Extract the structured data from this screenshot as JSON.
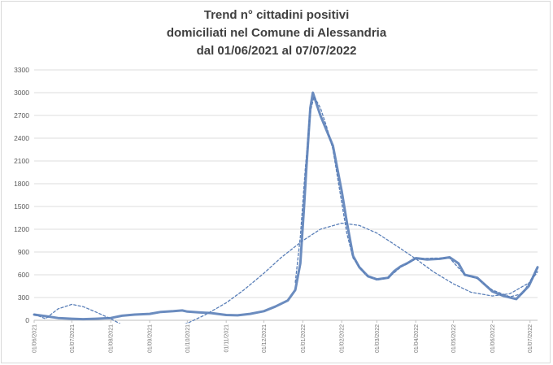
{
  "chart_data": {
    "type": "line",
    "title_lines": [
      "Trend n° cittadini positivi",
      "domiciliati nel Comune di Alessandria",
      "dal 01/06/2021 al 07/07/2022"
    ],
    "ylim": [
      0,
      3300
    ],
    "yticks": [
      0,
      300,
      600,
      900,
      1200,
      1500,
      1800,
      2100,
      2400,
      2700,
      3000,
      3300
    ],
    "xlim": [
      "2021-06-01",
      "2022-07-07"
    ],
    "xticks": [
      "01/06/2021",
      "01/07/2021",
      "01/08/2021",
      "01/09/2021",
      "01/10/2021",
      "01/11/2021",
      "01/12/2021",
      "01/01/2022",
      "01/02/2022",
      "01/03/2022",
      "01/04/2022",
      "01/05/2022",
      "01/06/2022",
      "01/07/2022"
    ],
    "grid": true,
    "series": [
      {
        "style": "solid",
        "color": "#6b8cbf",
        "points": [
          [
            "2021-06-01",
            75
          ],
          [
            "2021-06-10",
            55
          ],
          [
            "2021-06-20",
            30
          ],
          [
            "2021-07-01",
            20
          ],
          [
            "2021-07-10",
            15
          ],
          [
            "2021-07-20",
            20
          ],
          [
            "2021-08-01",
            30
          ],
          [
            "2021-08-10",
            60
          ],
          [
            "2021-08-20",
            75
          ],
          [
            "2021-09-01",
            85
          ],
          [
            "2021-09-10",
            110
          ],
          [
            "2021-09-20",
            120
          ],
          [
            "2021-09-27",
            130
          ],
          [
            "2021-10-01",
            115
          ],
          [
            "2021-10-10",
            105
          ],
          [
            "2021-10-20",
            95
          ],
          [
            "2021-11-01",
            70
          ],
          [
            "2021-11-10",
            65
          ],
          [
            "2021-11-20",
            85
          ],
          [
            "2021-12-01",
            120
          ],
          [
            "2021-12-10",
            180
          ],
          [
            "2021-12-20",
            260
          ],
          [
            "2021-12-26",
            400
          ],
          [
            "2021-12-30",
            750
          ],
          [
            "2022-01-02",
            1500
          ],
          [
            "2022-01-04",
            2050
          ],
          [
            "2022-01-07",
            2800
          ],
          [
            "2022-01-09",
            3000
          ],
          [
            "2022-01-12",
            2850
          ],
          [
            "2022-01-15",
            2700
          ],
          [
            "2022-01-20",
            2500
          ],
          [
            "2022-01-25",
            2300
          ],
          [
            "2022-02-01",
            1700
          ],
          [
            "2022-02-05",
            1300
          ],
          [
            "2022-02-10",
            850
          ],
          [
            "2022-02-15",
            700
          ],
          [
            "2022-02-22",
            580
          ],
          [
            "2022-03-01",
            540
          ],
          [
            "2022-03-10",
            560
          ],
          [
            "2022-03-15",
            650
          ],
          [
            "2022-03-20",
            710
          ],
          [
            "2022-03-25",
            750
          ],
          [
            "2022-04-01",
            820
          ],
          [
            "2022-04-10",
            800
          ],
          [
            "2022-04-20",
            810
          ],
          [
            "2022-04-28",
            830
          ],
          [
            "2022-05-05",
            750
          ],
          [
            "2022-05-10",
            600
          ],
          [
            "2022-05-20",
            560
          ],
          [
            "2022-06-01",
            380
          ],
          [
            "2022-06-10",
            320
          ],
          [
            "2022-06-20",
            280
          ],
          [
            "2022-06-30",
            450
          ],
          [
            "2022-07-07",
            700
          ]
        ]
      },
      {
        "style": "dashed",
        "color": "#5a7fb8",
        "points": [
          [
            "2021-06-01",
            80
          ],
          [
            "2021-06-10",
            20
          ],
          [
            "2021-06-20",
            150
          ],
          [
            "2021-07-01",
            210
          ],
          [
            "2021-07-10",
            180
          ],
          [
            "2021-07-20",
            110
          ],
          [
            "2021-08-01",
            20
          ],
          [
            "2021-08-10",
            -60
          ],
          [
            "2021-08-20",
            -110
          ],
          [
            "2021-09-01",
            -130
          ],
          [
            "2021-09-15",
            -110
          ],
          [
            "2021-10-01",
            -40
          ],
          [
            "2021-10-15",
            70
          ],
          [
            "2021-11-01",
            230
          ],
          [
            "2021-11-15",
            400
          ],
          [
            "2021-12-01",
            620
          ],
          [
            "2021-12-15",
            830
          ],
          [
            "2022-01-01",
            1050
          ],
          [
            "2022-01-15",
            1200
          ],
          [
            "2022-02-01",
            1280
          ],
          [
            "2022-02-15",
            1250
          ],
          [
            "2022-03-01",
            1150
          ],
          [
            "2022-03-15",
            1000
          ],
          [
            "2022-04-01",
            810
          ],
          [
            "2022-04-15",
            640
          ],
          [
            "2022-05-01",
            480
          ],
          [
            "2022-05-15",
            370
          ],
          [
            "2022-06-01",
            320
          ],
          [
            "2022-06-15",
            350
          ],
          [
            "2022-07-01",
            500
          ],
          [
            "2022-07-07",
            640
          ]
        ]
      },
      {
        "style": "dashed",
        "color": "#5a7fb8",
        "points": [
          [
            "2021-12-26",
            500
          ],
          [
            "2021-12-30",
            1100
          ],
          [
            "2022-01-03",
            2000
          ],
          [
            "2022-01-07",
            2750
          ],
          [
            "2022-01-10",
            2950
          ],
          [
            "2022-01-15",
            2800
          ],
          [
            "2022-01-20",
            2550
          ],
          [
            "2022-01-25",
            2250
          ],
          [
            "2022-02-01",
            1550
          ],
          [
            "2022-02-05",
            1150
          ],
          [
            "2022-02-10",
            820
          ],
          [
            "2022-02-20",
            600
          ],
          [
            "2022-03-01",
            530
          ],
          [
            "2022-03-10",
            560
          ],
          [
            "2022-03-20",
            700
          ],
          [
            "2022-04-01",
            810
          ],
          [
            "2022-04-15",
            820
          ],
          [
            "2022-04-28",
            820
          ],
          [
            "2022-05-10",
            600
          ],
          [
            "2022-05-20",
            550
          ],
          [
            "2022-06-01",
            400
          ],
          [
            "2022-06-15",
            310
          ],
          [
            "2022-06-25",
            350
          ],
          [
            "2022-07-07",
            680
          ]
        ]
      }
    ]
  }
}
